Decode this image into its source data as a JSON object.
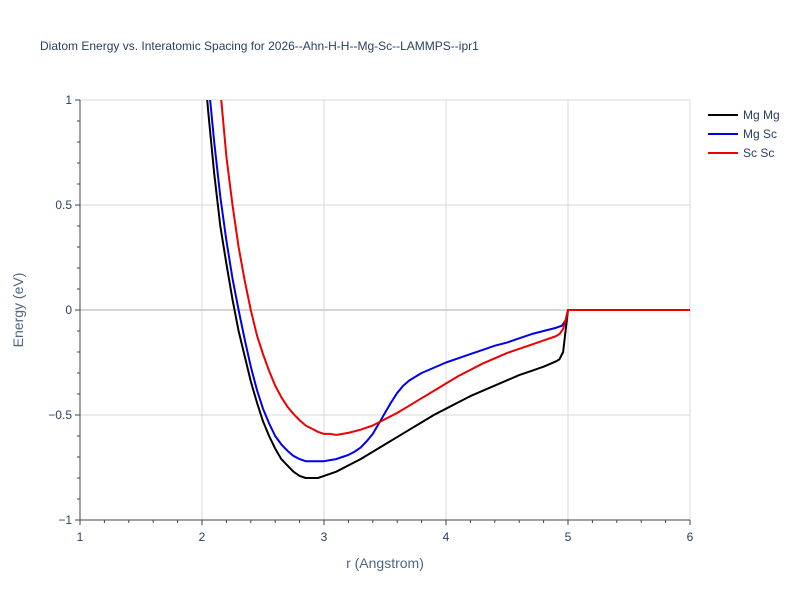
{
  "chart_data": {
    "type": "line",
    "title": "Diatom Energy vs. Interatomic Spacing for 2026--Ahn-H-H--Mg-Sc--LAMMPS--ipr1",
    "xlabel": "r (Angstrom)",
    "ylabel": "Energy (eV)",
    "xlim": [
      1,
      6
    ],
    "ylim": [
      -1,
      1
    ],
    "xticks": [
      "1",
      "2",
      "3",
      "4",
      "5",
      "6"
    ],
    "yticks": [
      "−1",
      "−0.5",
      "0",
      "0.5",
      "1"
    ],
    "grid": true,
    "legend_position": "top-right",
    "series": [
      {
        "name": "Mg Mg",
        "color": "#000000",
        "x": [
          2.0,
          2.05,
          2.1,
          2.15,
          2.2,
          2.25,
          2.3,
          2.35,
          2.4,
          2.45,
          2.5,
          2.55,
          2.6,
          2.65,
          2.7,
          2.75,
          2.8,
          2.85,
          2.9,
          2.95,
          3.0,
          3.05,
          3.1,
          3.15,
          3.2,
          3.3,
          3.4,
          3.5,
          3.6,
          3.7,
          3.8,
          3.9,
          4.0,
          4.1,
          4.2,
          4.3,
          4.4,
          4.5,
          4.6,
          4.7,
          4.8,
          4.9,
          4.93,
          4.96,
          4.98,
          5.0,
          5.1,
          5.5,
          6.0
        ],
        "y": [
          1.3,
          0.95,
          0.65,
          0.4,
          0.22,
          0.05,
          -0.1,
          -0.22,
          -0.34,
          -0.44,
          -0.53,
          -0.6,
          -0.66,
          -0.71,
          -0.74,
          -0.77,
          -0.79,
          -0.8,
          -0.8,
          -0.8,
          -0.79,
          -0.78,
          -0.77,
          -0.755,
          -0.74,
          -0.71,
          -0.675,
          -0.64,
          -0.605,
          -0.57,
          -0.535,
          -0.5,
          -0.47,
          -0.44,
          -0.41,
          -0.385,
          -0.36,
          -0.335,
          -0.31,
          -0.29,
          -0.27,
          -0.245,
          -0.235,
          -0.2,
          -0.1,
          0.0,
          0.0,
          0.0,
          0.0
        ]
      },
      {
        "name": "Mg Sc",
        "color": "#0000ee",
        "x": [
          2.05,
          2.1,
          2.15,
          2.2,
          2.25,
          2.3,
          2.35,
          2.4,
          2.45,
          2.5,
          2.55,
          2.6,
          2.65,
          2.7,
          2.75,
          2.8,
          2.85,
          2.9,
          2.95,
          3.0,
          3.05,
          3.1,
          3.15,
          3.2,
          3.25,
          3.3,
          3.35,
          3.4,
          3.45,
          3.5,
          3.55,
          3.6,
          3.65,
          3.7,
          3.8,
          3.9,
          4.0,
          4.1,
          4.2,
          4.3,
          4.4,
          4.5,
          4.6,
          4.7,
          4.8,
          4.9,
          4.95,
          4.98,
          5.0,
          5.1,
          5.5,
          6.0
        ],
        "y": [
          1.1,
          0.8,
          0.54,
          0.33,
          0.15,
          0.0,
          -0.14,
          -0.27,
          -0.38,
          -0.47,
          -0.54,
          -0.6,
          -0.64,
          -0.67,
          -0.695,
          -0.71,
          -0.72,
          -0.72,
          -0.72,
          -0.72,
          -0.715,
          -0.71,
          -0.7,
          -0.69,
          -0.675,
          -0.655,
          -0.625,
          -0.59,
          -0.54,
          -0.49,
          -0.44,
          -0.395,
          -0.36,
          -0.335,
          -0.3,
          -0.275,
          -0.25,
          -0.23,
          -0.21,
          -0.19,
          -0.17,
          -0.155,
          -0.135,
          -0.115,
          -0.1,
          -0.085,
          -0.075,
          -0.05,
          0.0,
          0.0,
          0.0,
          0.0
        ]
      },
      {
        "name": "Sc Sc",
        "color": "#ee0000",
        "x": [
          2.15,
          2.2,
          2.25,
          2.3,
          2.35,
          2.4,
          2.45,
          2.5,
          2.55,
          2.6,
          2.65,
          2.7,
          2.75,
          2.8,
          2.85,
          2.9,
          2.95,
          3.0,
          3.05,
          3.1,
          3.15,
          3.2,
          3.3,
          3.4,
          3.5,
          3.6,
          3.7,
          3.8,
          3.9,
          4.0,
          4.1,
          4.2,
          4.3,
          4.4,
          4.5,
          4.6,
          4.7,
          4.8,
          4.9,
          4.93,
          4.96,
          4.98,
          5.0,
          5.1,
          5.5,
          6.0
        ],
        "y": [
          1.05,
          0.73,
          0.5,
          0.3,
          0.14,
          0.0,
          -0.12,
          -0.21,
          -0.29,
          -0.36,
          -0.415,
          -0.46,
          -0.495,
          -0.525,
          -0.55,
          -0.565,
          -0.58,
          -0.59,
          -0.59,
          -0.595,
          -0.59,
          -0.585,
          -0.57,
          -0.55,
          -0.52,
          -0.49,
          -0.455,
          -0.42,
          -0.385,
          -0.35,
          -0.315,
          -0.285,
          -0.255,
          -0.23,
          -0.205,
          -0.185,
          -0.165,
          -0.145,
          -0.125,
          -0.115,
          -0.09,
          -0.05,
          0.0,
          0.0,
          0.0,
          0.0
        ]
      }
    ]
  }
}
